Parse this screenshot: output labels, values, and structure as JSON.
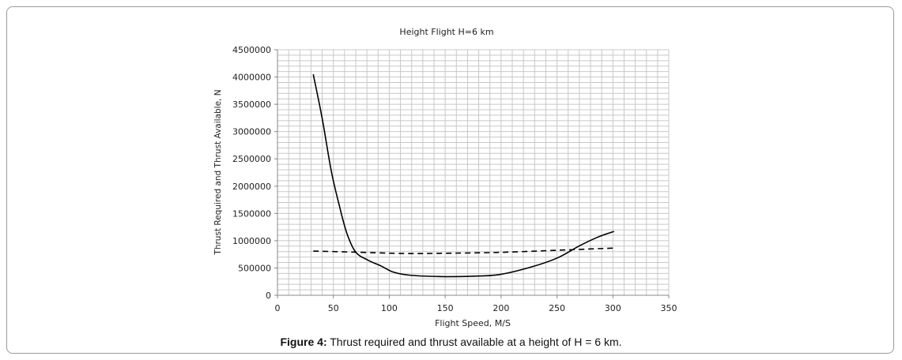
{
  "chart_data": {
    "type": "line",
    "title": "Height Flight H=6 km",
    "xlabel": "Flight Speed, M/S",
    "ylabel": "Thrust Required and Thrust Available, N",
    "xlim": [
      0,
      350
    ],
    "ylim": [
      0,
      4500000
    ],
    "xticks": [
      0,
      50,
      100,
      150,
      200,
      250,
      300,
      350
    ],
    "yticks": [
      0,
      500000,
      1000000,
      1500000,
      2000000,
      2500000,
      3000000,
      3500000,
      4000000,
      4500000
    ],
    "grid": true,
    "legend": "none",
    "series": [
      {
        "style": "solid",
        "color": "#000000",
        "x": [
          32,
          40,
          48,
          55,
          62,
          70,
          81,
          93,
          103,
          117,
          145,
          173,
          199,
          228,
          251,
          270,
          287,
          301
        ],
        "y": [
          4050000,
          3240000,
          2290000,
          1670000,
          1140000,
          790000,
          643000,
          533000,
          429000,
          371000,
          343000,
          348000,
          381000,
          524000,
          690000,
          905000,
          1070000,
          1170000
        ]
      },
      {
        "style": "dashed",
        "color": "#000000",
        "x": [
          32,
          70,
          114,
          150,
          199,
          250,
          301
        ],
        "y": [
          810000,
          790000,
          765000,
          770000,
          786000,
          825000,
          865000
        ]
      }
    ]
  },
  "caption": {
    "label": "Figure 4:",
    "text": " Thrust required and thrust available at a height of H = 6 km."
  }
}
